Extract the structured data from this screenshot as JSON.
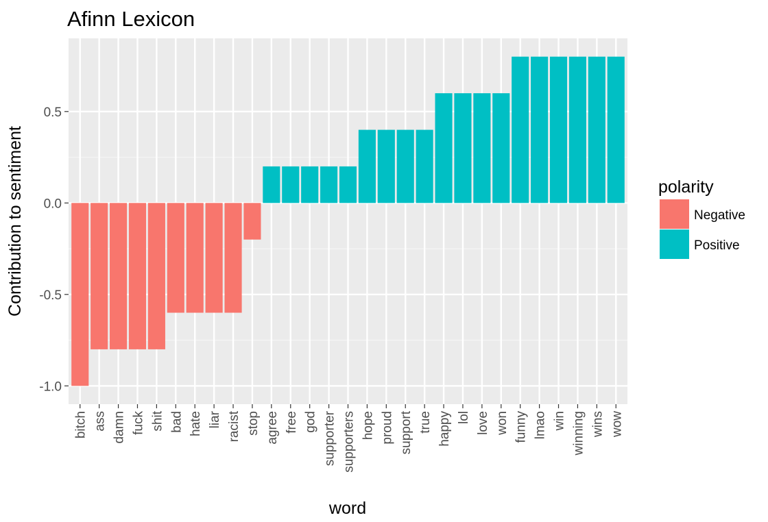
{
  "chart_data": {
    "type": "bar",
    "title": "Afinn Lexicon",
    "xlabel": "word",
    "ylabel": "Contribution to sentiment",
    "ylim": [
      -1.1,
      0.9
    ],
    "yticks": [
      -1.0,
      -0.5,
      0.0,
      0.5
    ],
    "ytick_labels": [
      "-1.0",
      "-0.5",
      "0.0",
      "0.5"
    ],
    "grid": true,
    "legend": {
      "title": "polarity",
      "placement": "right",
      "entries": [
        {
          "label": "Negative",
          "color": "#F8766D"
        },
        {
          "label": "Positive",
          "color": "#00BFC4"
        }
      ]
    },
    "categories": [
      "bitch",
      "ass",
      "damn",
      "fuck",
      "shit",
      "bad",
      "hate",
      "liar",
      "racist",
      "stop",
      "agree",
      "free",
      "god",
      "supporter",
      "supporters",
      "hope",
      "proud",
      "support",
      "true",
      "happy",
      "lol",
      "love",
      "won",
      "funny",
      "lmao",
      "win",
      "winning",
      "wins",
      "wow"
    ],
    "values": [
      -1.0,
      -0.8,
      -0.8,
      -0.8,
      -0.8,
      -0.6,
      -0.6,
      -0.6,
      -0.6,
      -0.2,
      0.2,
      0.2,
      0.2,
      0.2,
      0.2,
      0.4,
      0.4,
      0.4,
      0.4,
      0.6,
      0.6,
      0.6,
      0.6,
      0.8,
      0.8,
      0.8,
      0.8,
      0.8,
      0.8
    ],
    "polarity": [
      "Negative",
      "Negative",
      "Negative",
      "Negative",
      "Negative",
      "Negative",
      "Negative",
      "Negative",
      "Negative",
      "Negative",
      "Positive",
      "Positive",
      "Positive",
      "Positive",
      "Positive",
      "Positive",
      "Positive",
      "Positive",
      "Positive",
      "Positive",
      "Positive",
      "Positive",
      "Positive",
      "Positive",
      "Positive",
      "Positive",
      "Positive",
      "Positive",
      "Positive"
    ]
  }
}
